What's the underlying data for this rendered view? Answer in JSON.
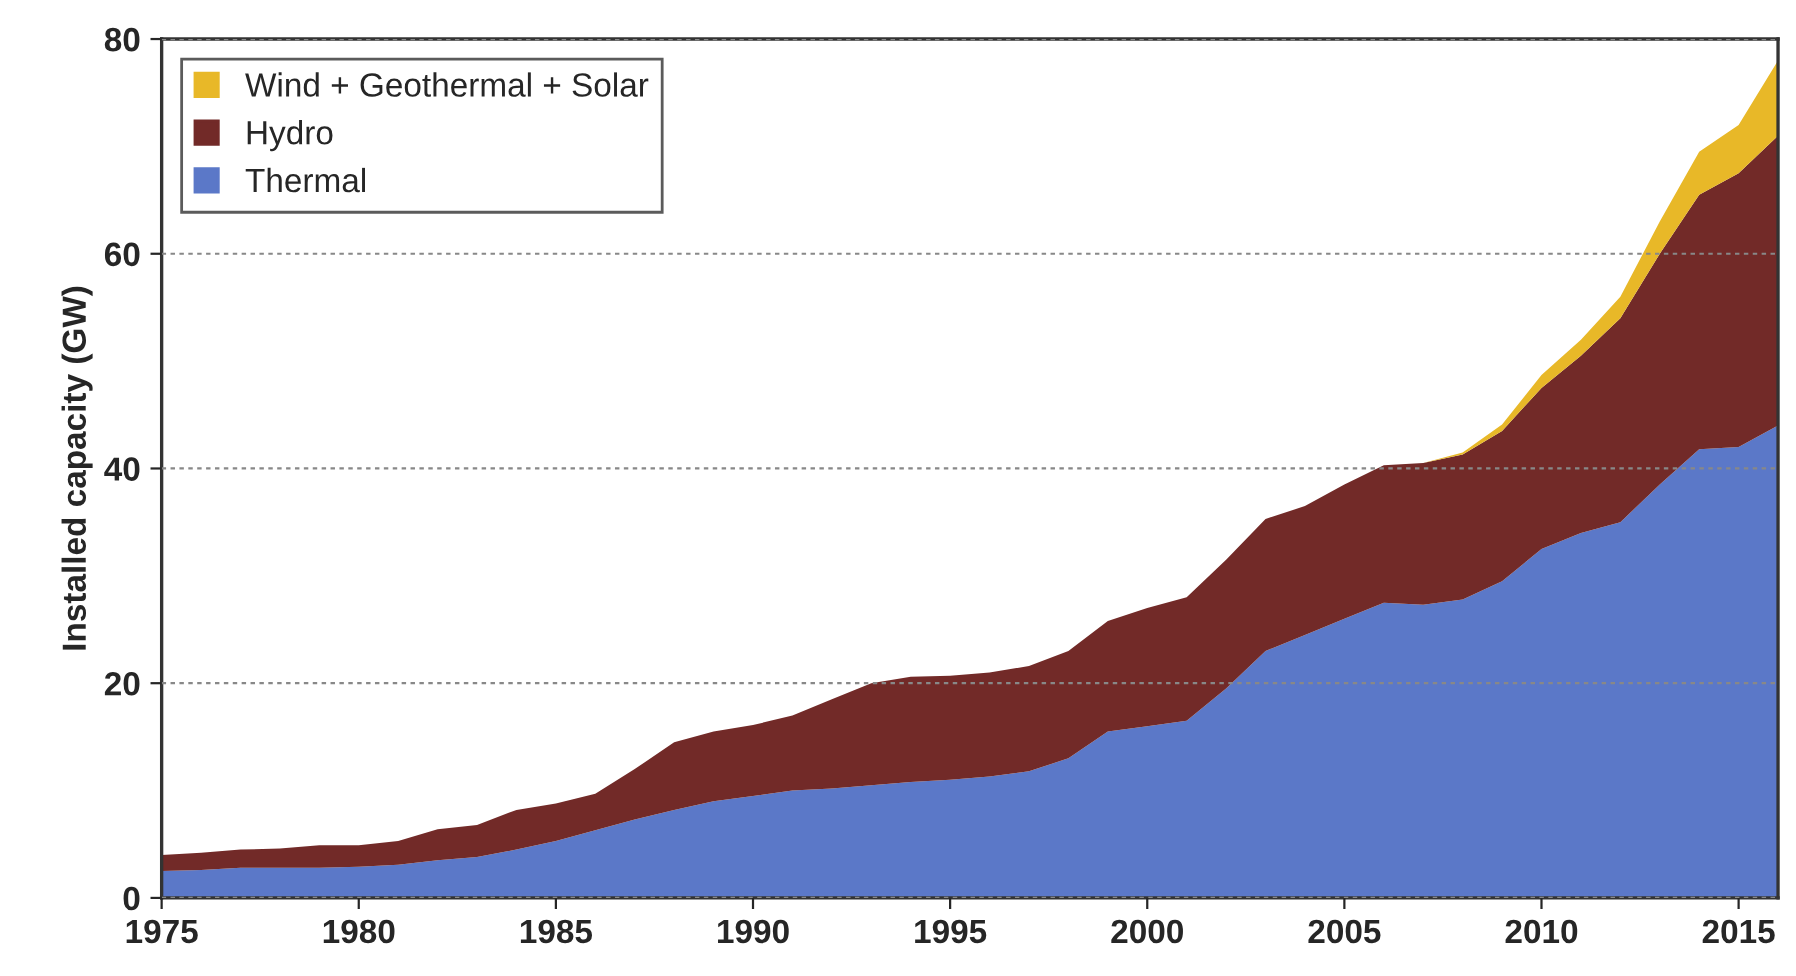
{
  "chart_data": {
    "type": "area",
    "stacked": true,
    "ylabel": "Installed capacity (GW)",
    "x": [
      1975,
      1976,
      1977,
      1978,
      1979,
      1980,
      1981,
      1982,
      1983,
      1984,
      1985,
      1986,
      1987,
      1988,
      1989,
      1990,
      1991,
      1992,
      1993,
      1994,
      1995,
      1996,
      1997,
      1998,
      1999,
      2000,
      2001,
      2002,
      2003,
      2004,
      2005,
      2006,
      2007,
      2008,
      2009,
      2010,
      2011,
      2012,
      2013,
      2014,
      2015,
      2016
    ],
    "series": [
      {
        "name": "Thermal",
        "color": "#5b78c8",
        "values": [
          2.5,
          2.6,
          2.8,
          2.8,
          2.8,
          2.9,
          3.1,
          3.5,
          3.8,
          4.5,
          5.3,
          6.3,
          7.3,
          8.2,
          9.0,
          9.5,
          10.0,
          10.2,
          10.5,
          10.8,
          11.0,
          11.3,
          11.8,
          13.0,
          15.5,
          16.0,
          16.5,
          19.5,
          23.0,
          24.5,
          26.0,
          27.5,
          27.3,
          27.8,
          29.5,
          32.5,
          34.0,
          35.0,
          38.5,
          41.8,
          42.0,
          44.0
        ]
      },
      {
        "name": "Hydro",
        "color": "#722a28",
        "values": [
          1.5,
          1.6,
          1.7,
          1.8,
          2.1,
          2.0,
          2.2,
          2.9,
          3.0,
          3.7,
          3.5,
          3.4,
          4.7,
          6.3,
          6.5,
          6.6,
          7.0,
          8.3,
          9.5,
          9.8,
          9.7,
          9.7,
          9.8,
          10.0,
          10.3,
          11.0,
          11.5,
          12.0,
          12.3,
          12.0,
          12.5,
          12.8,
          13.2,
          13.5,
          14.0,
          15.0,
          16.5,
          19.0,
          21.5,
          23.7,
          25.5,
          27.0
        ]
      },
      {
        "name": "Wind + Geothermal + Solar",
        "color": "#e8b828",
        "values": [
          0,
          0,
          0,
          0,
          0,
          0,
          0,
          0,
          0,
          0,
          0,
          0,
          0,
          0,
          0,
          0,
          0,
          0,
          0,
          0,
          0,
          0,
          0,
          0,
          0,
          0,
          0,
          0,
          0,
          0,
          0,
          0,
          0,
          0.2,
          0.6,
          1.2,
          1.5,
          2.0,
          3.0,
          4.0,
          4.5,
          7.0
        ]
      }
    ],
    "xlim": [
      1975,
      2016
    ],
    "xticks": [
      1975,
      1980,
      1985,
      1990,
      1995,
      2000,
      2005,
      2010,
      2015
    ],
    "ylim": [
      0,
      80
    ],
    "yticks": [
      0,
      20,
      40,
      60,
      80
    ],
    "grid": "y",
    "legend": "top left"
  }
}
